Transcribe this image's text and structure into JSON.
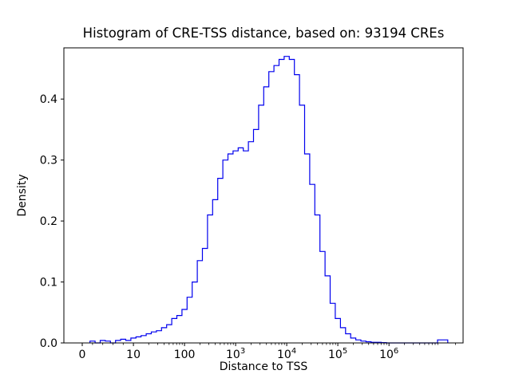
{
  "chart_data": {
    "type": "histogram-step",
    "title": "Histogram of CRE-TSS distance, based on: 93194 CREs",
    "xlabel": "Distance to TSS",
    "ylabel": "Density",
    "n_cres": 93194,
    "x_scale": "symlog",
    "x_axis_note": "u is the symlog axis coordinate: u=0 at value 0, u=k at value 10^k",
    "line_color": "#0000ee",
    "frame_color": "#000000",
    "grid": false,
    "legend": null,
    "ylim": [
      0,
      0.484
    ],
    "x_ticks": [
      {
        "u": 0,
        "label": "0"
      },
      {
        "u": 1,
        "label": "10"
      },
      {
        "u": 2,
        "label": "100"
      },
      {
        "u": 3,
        "label": "10",
        "sup": "3"
      },
      {
        "u": 4,
        "label": "10",
        "sup": "4"
      },
      {
        "u": 5,
        "label": "10",
        "sup": "5"
      },
      {
        "u": 6,
        "label": "10",
        "sup": "6"
      }
    ],
    "y_ticks": [
      "0.0",
      "0.1",
      "0.2",
      "0.3",
      "0.4"
    ],
    "y_tick_values": [
      0,
      0.1,
      0.2,
      0.3,
      0.4
    ],
    "hist": {
      "u_start": 0.15,
      "bin_width_u": 0.1,
      "peak_density": 0.47,
      "peak_at_u": 4.0,
      "density": [
        0.003,
        0,
        0.004,
        0.003,
        0,
        0.004,
        0.006,
        0.004,
        0.008,
        0.01,
        0.012,
        0.015,
        0.018,
        0.02,
        0.025,
        0.03,
        0.04,
        0.045,
        0.055,
        0.075,
        0.1,
        0.135,
        0.155,
        0.21,
        0.235,
        0.27,
        0.3,
        0.31,
        0.315,
        0.32,
        0.315,
        0.33,
        0.35,
        0.39,
        0.42,
        0.445,
        0.455,
        0.465,
        0.47,
        0.465,
        0.44,
        0.39,
        0.31,
        0.26,
        0.21,
        0.15,
        0.11,
        0.065,
        0.04,
        0.025,
        0.015,
        0.008,
        0.005,
        0.003,
        0.002,
        0.001,
        0.001,
        0.0005,
        0,
        0,
        0,
        0,
        0,
        0,
        0,
        0,
        0,
        0,
        0.005,
        0.005
      ]
    }
  }
}
